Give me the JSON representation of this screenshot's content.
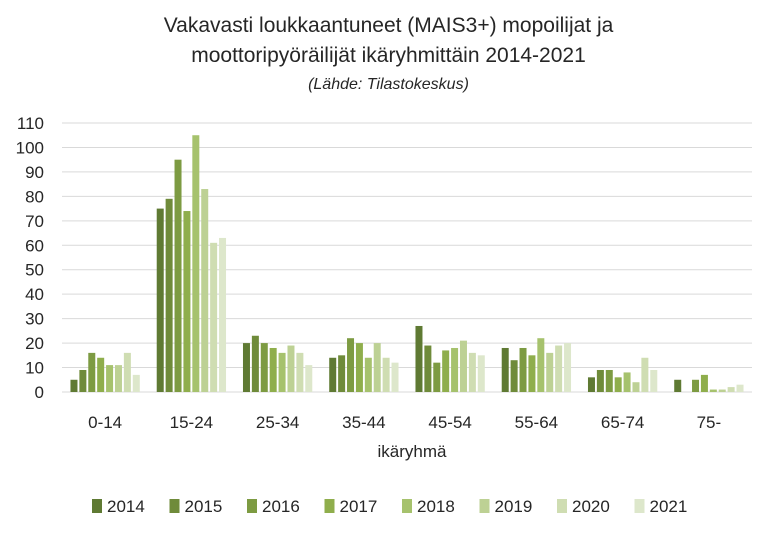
{
  "chart_data": {
    "type": "bar",
    "title_line1": "Vakavasti loukkaantuneet (MAIS3+) mopoilijat ja",
    "title_line2": "moottoripyöräilijät ikäryhmittäin 2014-2021",
    "subtitle": "(Lähde: Tilastokeskus)",
    "xlabel": "ikäryhmä",
    "ylabel": "",
    "ylim": [
      0,
      110
    ],
    "yticks": [
      0,
      10,
      20,
      30,
      40,
      50,
      60,
      70,
      80,
      90,
      100,
      110
    ],
    "grid": true,
    "legend_position": "bottom",
    "categories": [
      "0-14",
      "15-24",
      "25-34",
      "35-44",
      "45-54",
      "55-64",
      "65-74",
      "75-"
    ],
    "series": [
      {
        "name": "2014",
        "color": "#5f7a33",
        "values": [
          5,
          75,
          20,
          14,
          27,
          18,
          6,
          5
        ]
      },
      {
        "name": "2015",
        "color": "#6f8b3a",
        "values": [
          9,
          79,
          23,
          15,
          19,
          13,
          9,
          0
        ]
      },
      {
        "name": "2016",
        "color": "#7d9b42",
        "values": [
          16,
          95,
          20,
          22,
          12,
          18,
          9,
          5
        ]
      },
      {
        "name": "2017",
        "color": "#8fae4c",
        "values": [
          14,
          74,
          18,
          20,
          17,
          15,
          6,
          7
        ]
      },
      {
        "name": "2018",
        "color": "#a6c26d",
        "values": [
          11,
          105,
          16,
          14,
          18,
          22,
          8,
          1
        ]
      },
      {
        "name": "2019",
        "color": "#bdd194",
        "values": [
          11,
          83,
          19,
          20,
          21,
          16,
          4,
          1
        ]
      },
      {
        "name": "2020",
        "color": "#cfddb2",
        "values": [
          16,
          61,
          16,
          14,
          16,
          19,
          14,
          2
        ]
      },
      {
        "name": "2021",
        "color": "#dde7cb",
        "values": [
          7,
          63,
          11,
          12,
          15,
          20,
          9,
          3
        ]
      }
    ]
  }
}
